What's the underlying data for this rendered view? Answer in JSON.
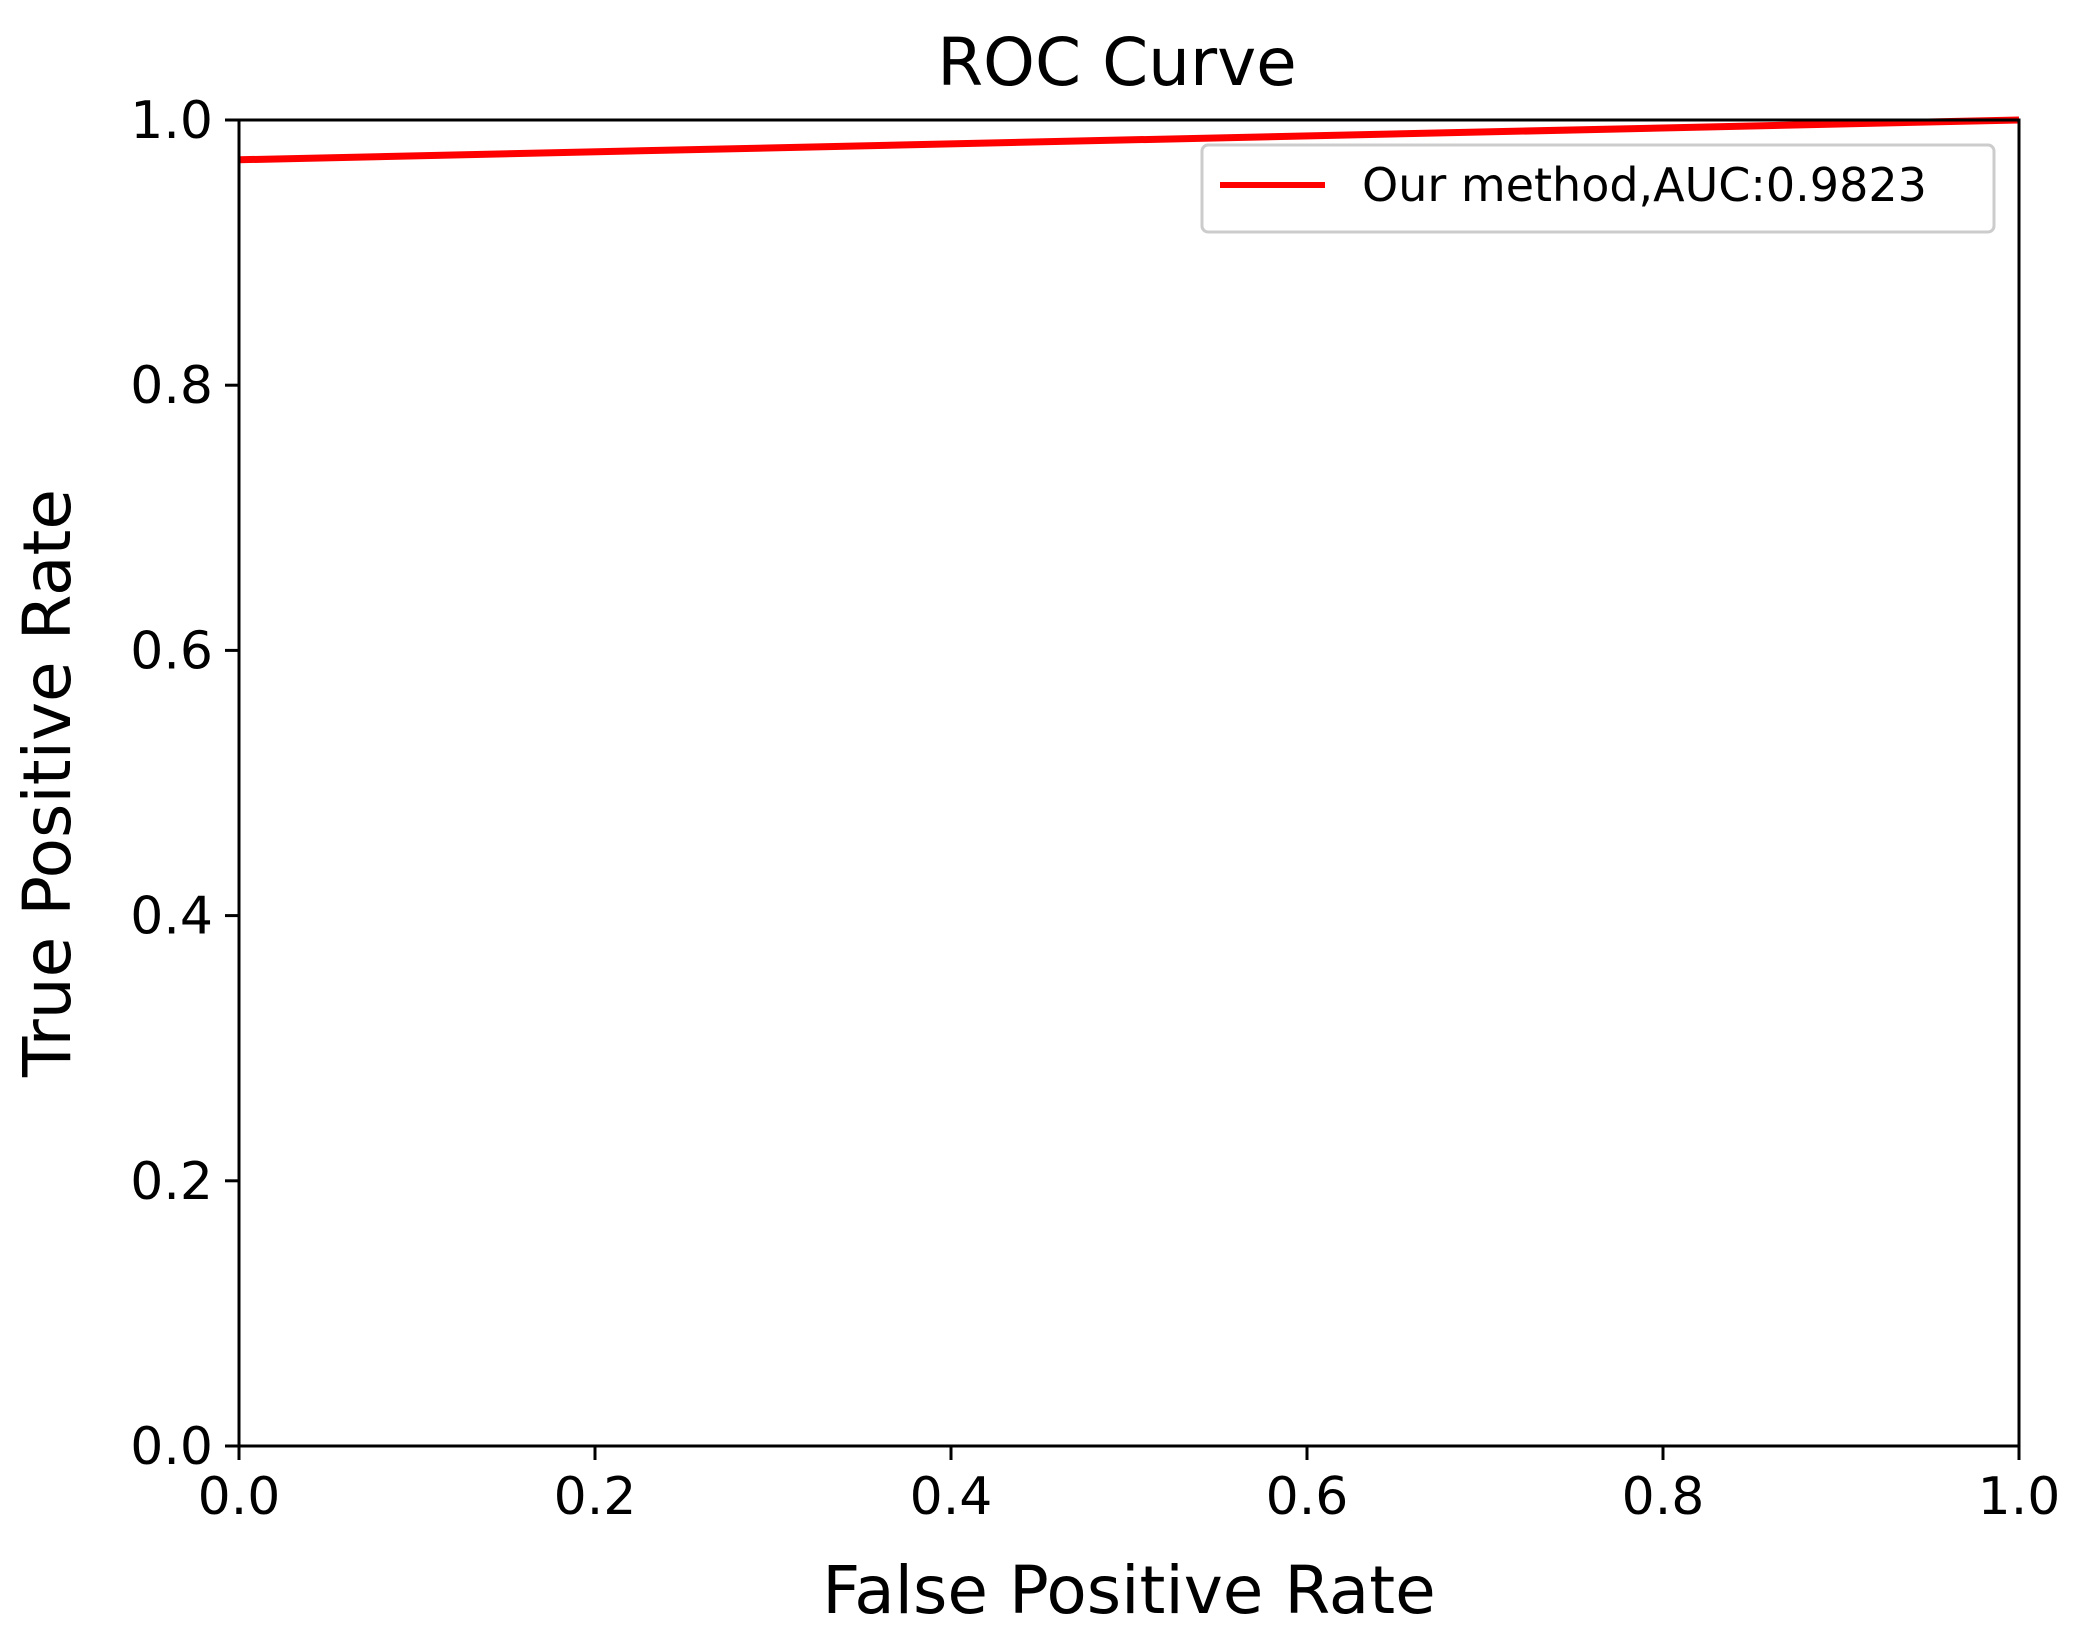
{
  "chart_data": {
    "type": "line",
    "title": "ROC Curve",
    "xlabel": "False Positive Rate",
    "ylabel": "True Positive Rate",
    "xlim": [
      0.0,
      1.0
    ],
    "ylim": [
      0.0,
      1.0
    ],
    "grid": false,
    "legend_position": "top-right",
    "x_ticks": [
      "0.0",
      "0.2",
      "0.4",
      "0.6",
      "0.8",
      "1.0"
    ],
    "y_ticks": [
      "0.0",
      "0.2",
      "0.4",
      "0.6",
      "0.8",
      "1.0"
    ],
    "series": [
      {
        "name": "Our method,AUC:0.9823",
        "color": "#ff0000",
        "x": [
          0.0,
          1.0
        ],
        "y": [
          0.97,
          1.0
        ]
      }
    ]
  }
}
